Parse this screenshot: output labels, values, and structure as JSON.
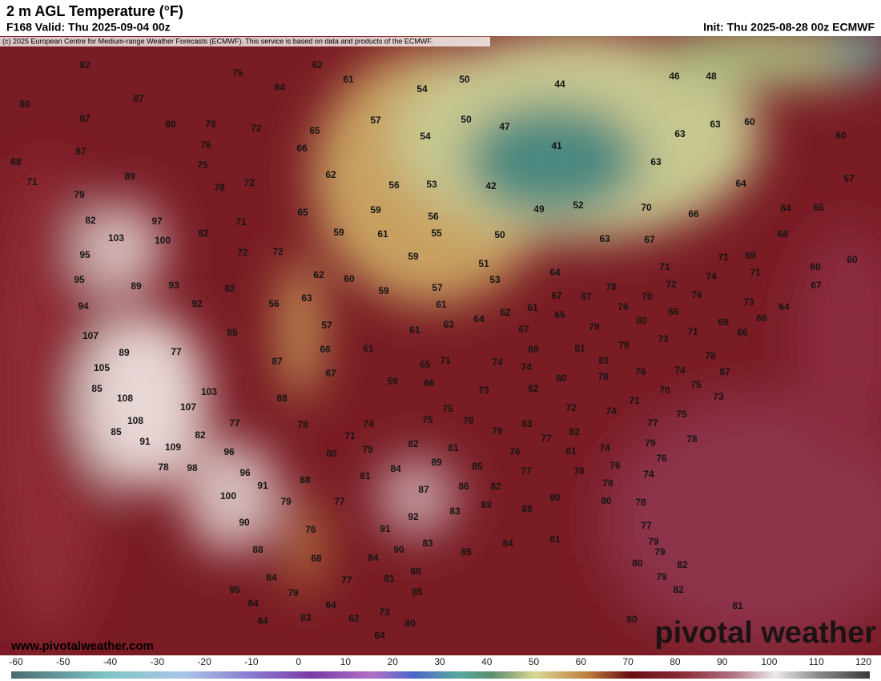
{
  "header": {
    "title": "2 m AGL Temperature (°F)",
    "valid": "F168 Valid: Thu 2025-09-04 00z",
    "init": "Init: Thu 2025-08-28 00z ECMWF",
    "copyright": "(c) 2025 European Centre for Medium-range Weather Forecasts (ECMWF). This service is based on data and products of the ECMWF."
  },
  "map": {
    "temperature_labels": [
      82,
      62,
      75,
      61,
      50,
      44,
      46,
      48,
      80,
      87,
      54,
      84,
      87,
      80,
      78,
      72,
      65,
      57,
      50,
      47,
      63,
      60,
      60,
      63,
      87,
      76,
      66,
      54,
      41,
      68,
      75,
      62,
      63,
      89,
      78,
      72,
      56,
      53,
      42,
      64,
      57,
      71,
      79,
      65,
      59,
      56,
      49,
      52,
      70,
      66,
      64,
      65,
      82,
      97,
      71,
      61,
      55,
      59,
      50,
      63,
      67,
      68,
      103,
      100,
      82,
      95,
      72,
      72,
      59,
      51,
      71,
      69,
      60,
      60,
      95,
      89,
      93,
      62,
      60,
      64,
      71,
      74,
      71,
      53,
      57,
      82,
      59,
      78,
      72,
      76,
      67,
      94,
      92,
      56,
      63,
      61,
      67,
      67,
      70,
      61,
      62,
      76,
      66,
      73,
      64,
      65,
      64,
      63,
      57,
      61,
      80,
      69,
      68,
      107,
      85,
      79,
      67,
      71,
      73,
      89,
      77,
      66,
      61,
      81,
      79,
      68,
      66,
      78,
      105,
      87,
      67,
      65,
      71,
      74,
      74,
      81,
      76,
      74,
      87,
      85,
      103,
      59,
      66,
      80,
      78,
      75,
      82,
      73,
      70,
      108,
      88,
      107,
      71,
      73,
      75,
      72,
      74,
      75,
      74,
      75,
      78,
      77,
      108,
      77,
      78,
      83,
      79,
      82,
      85,
      82,
      71,
      77,
      78,
      91,
      109,
      82,
      81,
      79,
      76,
      81,
      74,
      79,
      96,
      80,
      89,
      84,
      76,
      78,
      98,
      76,
      85,
      77,
      78,
      96,
      81,
      74,
      88,
      91,
      87,
      86,
      82,
      78,
      100,
      79,
      77,
      83,
      88,
      80,
      80,
      78,
      83,
      92,
      90,
      76,
      91,
      77,
      81,
      83,
      85,
      84,
      88,
      90,
      79,
      68,
      84,
      79,
      80,
      82,
      88,
      84,
      77,
      81,
      79,
      95,
      79,
      85,
      82,
      84,
      64,
      73,
      81,
      83,
      62,
      80,
      84,
      80,
      64
    ],
    "website": "www.pivotalweather.com",
    "logo": "pivotal weather"
  },
  "colorbar": {
    "ticks": [
      -60,
      -50,
      -40,
      -30,
      -20,
      -10,
      0,
      10,
      20,
      30,
      40,
      50,
      60,
      70,
      80,
      90,
      100,
      110,
      120
    ]
  }
}
